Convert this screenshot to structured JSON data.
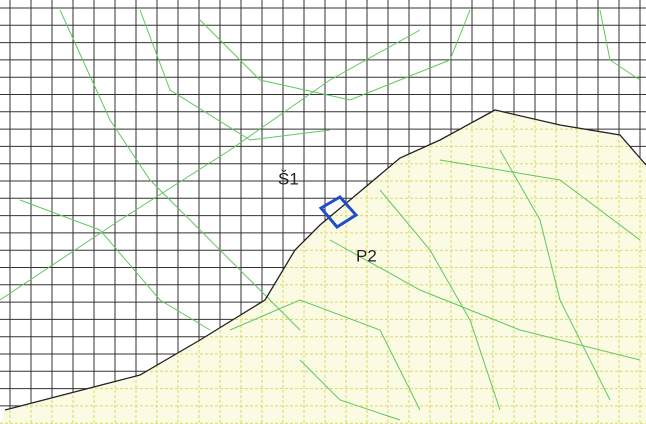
{
  "labels": [
    "Š1",
    "P2"
  ]
}
